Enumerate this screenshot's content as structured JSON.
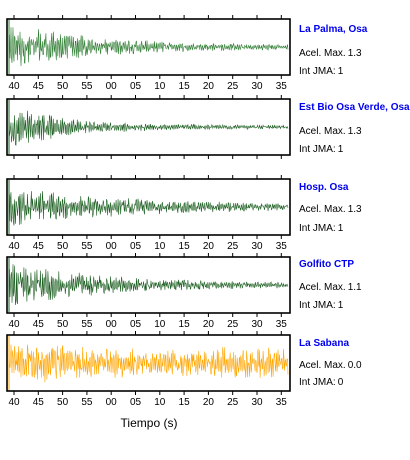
{
  "chart_data": {
    "type": "line",
    "xlabel": "Tiempo (s)",
    "x_ticks": [
      "40",
      "45",
      "50",
      "55",
      "00",
      "05",
      "10",
      "15",
      "20",
      "25",
      "30",
      "35"
    ],
    "panels": [
      {
        "station": "La Palma, Osa",
        "accel_label": "Acel. Max.",
        "accel_value": "1.3",
        "int_label": "Int JMA:",
        "int_value": "1",
        "color": "#2e7d32",
        "labels_below": true
      },
      {
        "station": "Est Bio Osa Verde, Osa",
        "accel_label": "Acel. Max.",
        "accel_value": "1.3",
        "int_label": "Int JMA:",
        "int_value": "1",
        "color": "#1b5e20",
        "labels_below": false
      },
      {
        "station": "Hosp. Osa",
        "accel_label": "Acel. Max.",
        "accel_value": "1.3",
        "int_label": "Int JMA:",
        "int_value": "1",
        "color": "#1b5e20",
        "labels_below": true
      },
      {
        "station": "Golfito CTP",
        "accel_label": "Acel. Max.",
        "accel_value": "1.1",
        "int_label": "Int JMA:",
        "int_value": "1",
        "color": "#1b5e20",
        "labels_below": true
      },
      {
        "station": "La Sabana",
        "accel_label": "Acel. Max.",
        "accel_value": "0.0",
        "int_label": "Int JMA:",
        "int_value": "0",
        "color": "#ffa500",
        "labels_below": true
      }
    ]
  }
}
